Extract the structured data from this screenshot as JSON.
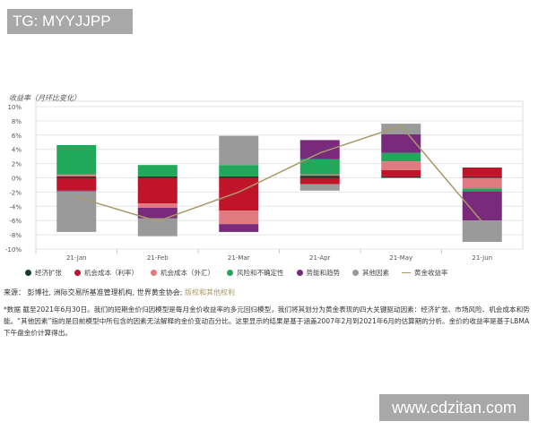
{
  "watermark_top": "TG: MYYJJPP",
  "watermark_bottom": "www.cdzitan.com",
  "chart_data": {
    "type": "bar",
    "stacked": true,
    "ylabel": "收益率（月环比变化）",
    "ylim": [
      -10,
      10
    ],
    "yticks": [
      "10%",
      "8%",
      "6%",
      "4%",
      "2%",
      "0%",
      "-2%",
      "-4%",
      "-6%",
      "-8%",
      "-10%"
    ],
    "grid": true,
    "legend_position": "bottom",
    "categories": [
      "21-Jan",
      "21-Feb",
      "21-Mar",
      "21-Apr",
      "21-May",
      "21-Jun"
    ],
    "series": [
      {
        "name": "经济扩张",
        "color": "#1b3b2b",
        "values": [
          0.2,
          0.2,
          0.2,
          0.3,
          0.2,
          0.2
        ]
      },
      {
        "name": "机会成本（利率）",
        "color": "#c0142a",
        "values": [
          -1.8,
          -3.6,
          -4.6,
          -0.9,
          0.9,
          1.25
        ]
      },
      {
        "name": "机会成本（外汇）",
        "color": "#e07a80",
        "values": [
          0.3,
          -0.6,
          -1.9,
          0.2,
          1.2,
          -1.5
        ]
      },
      {
        "name": "风险和不确定性",
        "color": "#22a85a",
        "values": [
          4.1,
          1.6,
          1.6,
          2.1,
          1.2,
          -0.4
        ]
      },
      {
        "name": "势能和趋势",
        "color": "#7a2a7a",
        "values": [
          -0.1,
          -1.5,
          -1.1,
          2.7,
          2.6,
          -4.1
        ]
      },
      {
        "name": "其他因素",
        "color": "#9a9a9a",
        "values": [
          -5.7,
          -2.5,
          4.1,
          -0.9,
          1.5,
          -3.0
        ]
      }
    ],
    "line": {
      "name": "黄金收益率",
      "color": "#a89a6a",
      "values": [
        -2.7,
        -6.1,
        -2.0,
        3.5,
        7.3,
        -6.2
      ]
    }
  },
  "source": {
    "label": "来源：",
    "text": "彭博社, 洲际交易所基准管理机构, 世界黄金协会; ",
    "rights": "版权和其他权利"
  },
  "note": "*数据 截至2021年6月30日。我们的短期金价归因模型是每月金价收益率的多元回归模型，我们将其划分为黄金表现的四大关键驱动因素：经济扩张、市场风险、机会成本和势能。“其他因素”指的是目前模型中所包含的因素无法解释的金价变动百分比。这里显示的结果是基于涵盖2007年2月到2021年6月的估算期的分析。金价的收益率是基于LBMA下午盘金价计算得出。"
}
